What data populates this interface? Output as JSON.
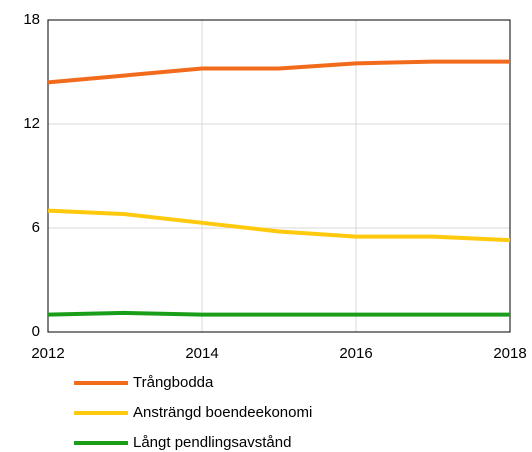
{
  "chart_data": {
    "type": "line",
    "x": [
      2012,
      2013,
      2014,
      2015,
      2016,
      2017,
      2018
    ],
    "series": [
      {
        "name": "Trångbodda",
        "color": "#f26b1d",
        "values": [
          14.4,
          14.8,
          15.2,
          15.2,
          15.5,
          15.6,
          15.6
        ]
      },
      {
        "name": "Ansträngd boendeekonomi",
        "color": "#ffc90e",
        "values": [
          7.0,
          6.8,
          6.3,
          5.8,
          5.5,
          5.5,
          5.3
        ]
      },
      {
        "name": "Långt pendlingsavstånd",
        "color": "#1a9e1a",
        "values": [
          1.0,
          1.1,
          1.0,
          1.0,
          1.0,
          1.0,
          1.0
        ]
      }
    ],
    "xlim": [
      2012,
      2018
    ],
    "xticks": [
      2012,
      2014,
      2016,
      2018
    ],
    "ylim": [
      0,
      18
    ],
    "yticks": [
      0,
      6,
      12,
      18
    ],
    "grid": true,
    "legend": "bottom"
  }
}
